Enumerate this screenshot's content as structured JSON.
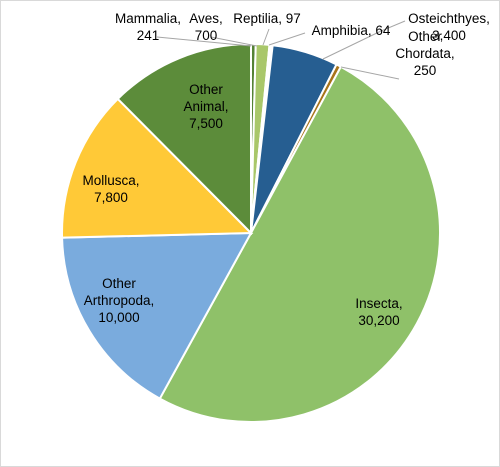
{
  "chart_data": {
    "type": "pie",
    "title": "",
    "slices": [
      {
        "name": "Mammalia",
        "value": 241,
        "color": "#548235"
      },
      {
        "name": "Aves",
        "value": 700,
        "color": "#a9c76a"
      },
      {
        "name": "Reptilia",
        "value": 97,
        "color": "#1f4e79"
      },
      {
        "name": "Amphibia",
        "value": 64,
        "color": "#4f81bd"
      },
      {
        "name": "Osteichthyes",
        "value": 3400,
        "color": "#265e91"
      },
      {
        "name": "Other Chordata",
        "value": 250,
        "color": "#a8741a"
      },
      {
        "name": "Insecta",
        "value": 30200,
        "color": "#8fc169"
      },
      {
        "name": "Other Arthropoda",
        "value": 10000,
        "color": "#7aabdd"
      },
      {
        "name": "Mollusca",
        "value": 7800,
        "color": "#ffc937"
      },
      {
        "name": "Other Animal",
        "value": 7500,
        "color": "#5c8c3a"
      }
    ],
    "labels": [
      {
        "lines": [
          "Mammalia,",
          "241"
        ]
      },
      {
        "lines": [
          "Aves,",
          "700"
        ]
      },
      {
        "lines": [
          "Reptilia, 97"
        ]
      },
      {
        "lines": [
          "Amphibia, 64"
        ]
      },
      {
        "lines": [
          "Osteichthyes,",
          "3,400"
        ]
      },
      {
        "lines": [
          "Other",
          "Chordata,",
          "250"
        ]
      },
      {
        "lines": [
          "Insecta,",
          "30,200"
        ]
      },
      {
        "lines": [
          "Other",
          "Arthropoda,",
          "10,000"
        ]
      },
      {
        "lines": [
          "Mollusca,",
          "7,800"
        ]
      },
      {
        "lines": [
          "Other",
          "Animal,",
          "7,500"
        ]
      }
    ],
    "start_angle_deg": 0,
    "direction": "clockwise",
    "legend": "none"
  }
}
